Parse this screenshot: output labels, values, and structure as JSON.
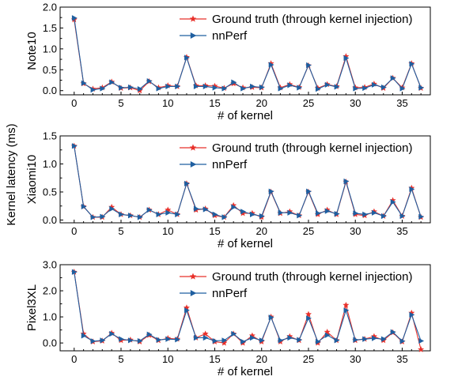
{
  "figure": {
    "shared_ylabel": "Kernel latency (ms)"
  },
  "chart_data": [
    {
      "type": "line",
      "panel_label": "Note10",
      "xlabel": "# of kernel",
      "ylabel": "Note10",
      "xlim": [
        -1.5,
        38
      ],
      "ylim": [
        -0.1,
        2.0
      ],
      "xticks": [
        0,
        5,
        10,
        15,
        20,
        25,
        30,
        35
      ],
      "yticks": [
        0.0,
        0.5,
        1.0,
        1.5,
        2.0
      ],
      "ytick_labels": [
        "0.0",
        "0.5",
        "1.0",
        "1.5",
        "2.0"
      ],
      "legend_position": "top-right",
      "x": [
        0,
        1,
        2,
        3,
        4,
        5,
        6,
        7,
        8,
        9,
        10,
        11,
        12,
        13,
        14,
        15,
        16,
        17,
        18,
        19,
        20,
        21,
        22,
        23,
        24,
        25,
        26,
        27,
        28,
        29,
        30,
        31,
        32,
        33,
        34,
        35,
        36,
        37
      ],
      "series": [
        {
          "name": "Ground truth (through kernel injection)",
          "color": "#e8302a",
          "marker": "star",
          "values": [
            1.7,
            0.17,
            0.04,
            0.07,
            0.21,
            0.06,
            0.07,
            0.0,
            0.22,
            0.07,
            0.12,
            0.1,
            0.8,
            0.12,
            0.12,
            0.11,
            0.06,
            0.17,
            0.07,
            0.08,
            0.07,
            0.65,
            0.07,
            0.15,
            0.08,
            0.6,
            0.06,
            0.15,
            0.1,
            0.82,
            0.07,
            0.08,
            0.16,
            0.06,
            0.3,
            0.07,
            0.65,
            0.06
          ]
        },
        {
          "name": "nnPerf",
          "color": "#1f5fa0",
          "marker": "triangle-right",
          "values": [
            1.74,
            0.18,
            0.02,
            0.05,
            0.2,
            0.07,
            0.08,
            0.04,
            0.23,
            0.05,
            0.1,
            0.1,
            0.79,
            0.1,
            0.1,
            0.07,
            0.05,
            0.2,
            0.05,
            0.1,
            0.08,
            0.62,
            0.05,
            0.13,
            0.07,
            0.61,
            0.04,
            0.14,
            0.09,
            0.78,
            0.05,
            0.06,
            0.14,
            0.08,
            0.3,
            0.05,
            0.64,
            0.07
          ]
        }
      ]
    },
    {
      "type": "line",
      "panel_label": "Xiaomi10",
      "xlabel": "# of kernel",
      "ylabel": "Xiaomi10",
      "xlim": [
        -1.5,
        38
      ],
      "ylim": [
        -0.05,
        1.5
      ],
      "xticks": [
        0,
        5,
        10,
        15,
        20,
        25,
        30,
        35
      ],
      "yticks": [
        0.0,
        0.5,
        1.0,
        1.5
      ],
      "ytick_labels": [
        "0.0",
        "0.5",
        "1.0",
        "1.5"
      ],
      "legend_position": "top-right",
      "x": [
        0,
        1,
        2,
        3,
        4,
        5,
        6,
        7,
        8,
        9,
        10,
        11,
        12,
        13,
        14,
        15,
        16,
        17,
        18,
        19,
        20,
        21,
        22,
        23,
        24,
        25,
        26,
        27,
        28,
        29,
        30,
        31,
        32,
        33,
        34,
        35,
        36,
        37
      ],
      "series": [
        {
          "name": "Ground truth (through kernel injection)",
          "color": "#e8302a",
          "marker": "star",
          "values": [
            1.32,
            0.24,
            0.05,
            0.05,
            0.23,
            0.1,
            0.08,
            0.05,
            0.18,
            0.1,
            0.18,
            0.1,
            0.65,
            0.18,
            0.2,
            0.08,
            0.05,
            0.26,
            0.12,
            0.12,
            0.05,
            0.5,
            0.12,
            0.15,
            0.08,
            0.5,
            0.1,
            0.18,
            0.1,
            0.68,
            0.1,
            0.08,
            0.15,
            0.07,
            0.35,
            0.07,
            0.57,
            0.05
          ]
        },
        {
          "name": "nnPerf",
          "color": "#1f5fa0",
          "marker": "triangle-right",
          "values": [
            1.32,
            0.24,
            0.05,
            0.06,
            0.2,
            0.1,
            0.08,
            0.05,
            0.18,
            0.1,
            0.13,
            0.1,
            0.65,
            0.2,
            0.19,
            0.1,
            0.05,
            0.23,
            0.15,
            0.1,
            0.07,
            0.51,
            0.13,
            0.13,
            0.08,
            0.51,
            0.12,
            0.16,
            0.11,
            0.69,
            0.12,
            0.1,
            0.13,
            0.07,
            0.32,
            0.07,
            0.55,
            0.06
          ]
        }
      ]
    },
    {
      "type": "line",
      "panel_label": "Pixel3XL",
      "xlabel": "# of kernel",
      "ylabel": "Pixel3XL",
      "xlim": [
        -1.5,
        38
      ],
      "ylim": [
        -0.3,
        3.0
      ],
      "xticks": [
        0,
        5,
        10,
        15,
        20,
        25,
        30,
        35
      ],
      "yticks": [
        0.0,
        1.0,
        2.0,
        3.0
      ],
      "ytick_labels": [
        "0.0",
        "1.0",
        "2.0",
        "3.0"
      ],
      "legend_position": "top-right",
      "x": [
        0,
        1,
        2,
        3,
        4,
        5,
        6,
        7,
        8,
        9,
        10,
        11,
        12,
        13,
        14,
        15,
        16,
        17,
        18,
        19,
        20,
        21,
        22,
        23,
        24,
        25,
        26,
        27,
        28,
        29,
        30,
        31,
        32,
        33,
        34,
        35,
        36,
        37
      ],
      "series": [
        {
          "name": "Ground truth (through kernel injection)",
          "color": "#e8302a",
          "marker": "star",
          "values": [
            2.72,
            0.35,
            0.05,
            0.08,
            0.38,
            0.1,
            0.12,
            0.05,
            0.3,
            0.1,
            0.18,
            0.15,
            1.35,
            0.2,
            0.35,
            0.05,
            0.0,
            0.35,
            0.0,
            0.28,
            0.05,
            1.0,
            0.05,
            0.25,
            0.1,
            1.1,
            0.0,
            0.42,
            0.1,
            1.45,
            0.1,
            0.15,
            0.25,
            0.1,
            0.4,
            0.05,
            1.15,
            -0.25
          ]
        },
        {
          "name": "nnPerf",
          "color": "#1f5fa0",
          "marker": "triangle-right",
          "values": [
            2.72,
            0.28,
            0.07,
            0.1,
            0.35,
            0.15,
            0.1,
            0.08,
            0.33,
            0.12,
            0.15,
            0.13,
            1.25,
            0.2,
            0.2,
            0.08,
            0.1,
            0.35,
            0.05,
            0.2,
            0.1,
            0.98,
            0.1,
            0.2,
            0.12,
            0.95,
            0.05,
            0.3,
            0.1,
            1.25,
            0.12,
            0.15,
            0.18,
            0.15,
            0.42,
            0.07,
            1.08,
            0.08
          ]
        }
      ]
    }
  ]
}
